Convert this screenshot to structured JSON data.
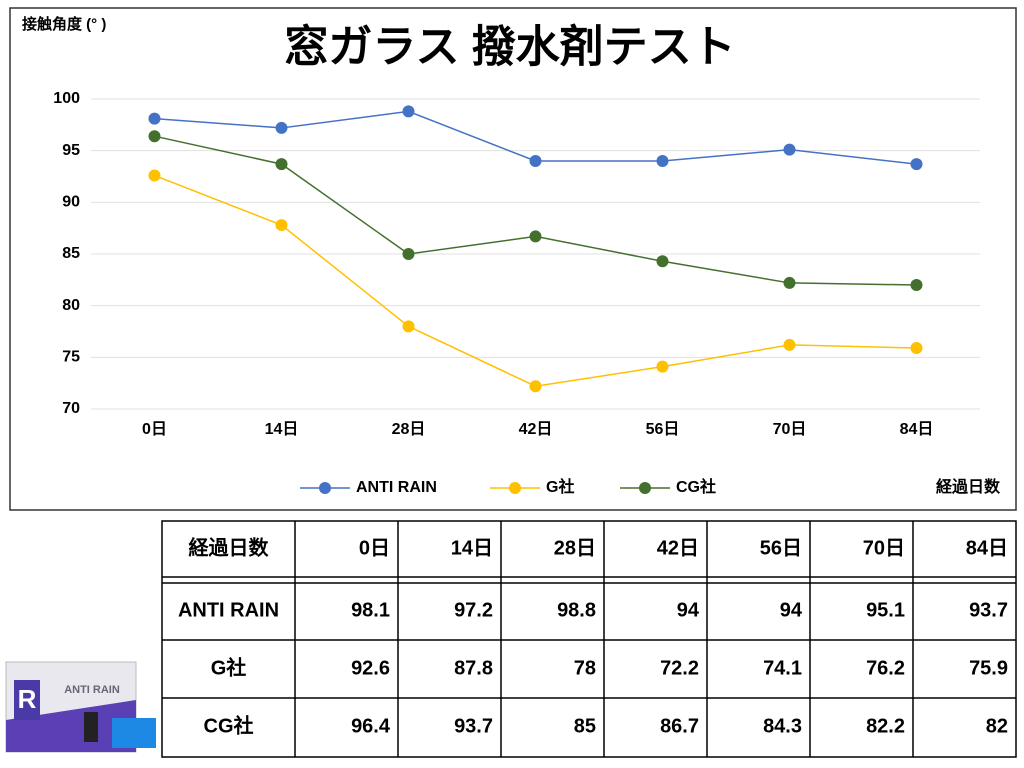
{
  "chart_data": {
    "type": "line",
    "title": "窓ガラス 撥水剤テスト",
    "y_label": "接触角度 (°  )",
    "x_label": "経過日数",
    "categories": [
      "0日",
      "14日",
      "28日",
      "42日",
      "56日",
      "70日",
      "84日"
    ],
    "series": [
      {
        "name": "ANTI RAIN",
        "color": "#4472c4",
        "values": [
          98.1,
          97.2,
          98.8,
          94,
          94,
          95.1,
          93.7
        ]
      },
      {
        "name": "G社",
        "color": "#ffc000",
        "values": [
          92.6,
          87.8,
          78,
          72.2,
          74.1,
          76.2,
          75.9
        ]
      },
      {
        "name": "CG社",
        "color": "#44702e",
        "values": [
          96.4,
          93.7,
          85,
          86.7,
          84.3,
          82.2,
          82
        ]
      }
    ],
    "ylim": [
      70,
      100
    ],
    "yticks": [
      70,
      75,
      80,
      85,
      90,
      95,
      100
    ],
    "grid": true,
    "legend": "bottom"
  },
  "table": {
    "header": [
      "経過日数",
      "0日",
      "14日",
      "28日",
      "42日",
      "56日",
      "70日",
      "84日"
    ],
    "rows": [
      [
        "ANTI RAIN",
        98.1,
        97.2,
        98.8,
        94,
        94,
        95.1,
        93.7
      ],
      [
        "G社",
        92.6,
        87.8,
        78,
        72.2,
        74.1,
        76.2,
        75.9
      ],
      [
        "CG社",
        96.4,
        93.7,
        85,
        86.7,
        84.3,
        82.2,
        82
      ]
    ]
  },
  "product": {
    "label": "ANTI RAIN",
    "logo": "R"
  }
}
